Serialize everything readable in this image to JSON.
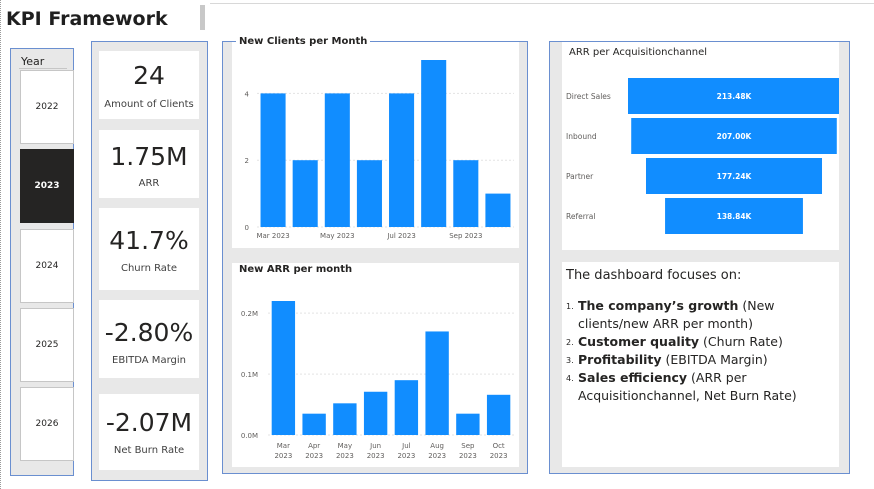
{
  "title": "KPI Framework",
  "year_slicer": {
    "header": "Year",
    "years": [
      "2022",
      "2023",
      "2024",
      "2025",
      "2026"
    ],
    "selected": "2023"
  },
  "kpis": [
    {
      "value": "24",
      "label": "Amount of Clients"
    },
    {
      "value": "1.75M",
      "label": "ARR"
    },
    {
      "value": "41.7%",
      "label": "Churn Rate"
    },
    {
      "value": "-2.80%",
      "label": "EBITDA Margin"
    },
    {
      "value": "-2.07M",
      "label": "Net Burn Rate"
    }
  ],
  "chart_data": [
    {
      "type": "bar",
      "title": "New Clients per Month",
      "categories": [
        "Mar 2023",
        "Apr 2023",
        "May 2023",
        "Jun 2023",
        "Jul 2023",
        "Aug 2023",
        "Sep 2023",
        "Oct 2023"
      ],
      "tick_labels": [
        "Mar 2023",
        "",
        "May 2023",
        "",
        "Jul 2023",
        "",
        "Sep 2023",
        ""
      ],
      "values": [
        4,
        2,
        4,
        2,
        4,
        5,
        2,
        1
      ],
      "yticks": [
        "0",
        "2",
        "4"
      ],
      "ylim": [
        0,
        5
      ],
      "color": "#118dff"
    },
    {
      "type": "bar",
      "title": "New ARR per month",
      "categories": [
        "Mar 2023",
        "Apr 2023",
        "May 2023",
        "Jun 2023",
        "Jul 2023",
        "Aug 2023",
        "Sep 2023",
        "Oct 2023"
      ],
      "tick_top": [
        "Mar",
        "Apr",
        "May",
        "Jun",
        "Jul",
        "Aug",
        "Sep",
        "Oct"
      ],
      "tick_bottom": [
        "2023",
        "2023",
        "2023",
        "2023",
        "2023",
        "2023",
        "2023",
        "2023"
      ],
      "values": [
        0.22,
        0.035,
        0.052,
        0.071,
        0.09,
        0.17,
        0.035,
        0.066
      ],
      "yticks": [
        "0.0M",
        "0.1M",
        "0.2M"
      ],
      "ylim": [
        0,
        0.22
      ],
      "color": "#118dff"
    },
    {
      "type": "funnel",
      "title": "ARR per Acquisitionchannel",
      "categories": [
        "Direct Sales",
        "Inbound",
        "Partner",
        "Referral"
      ],
      "values": [
        213.48,
        207.0,
        177.24,
        138.84
      ],
      "labels": [
        "213.48K",
        "207.00K",
        "177.24K",
        "138.84K"
      ],
      "color": "#118dff"
    }
  ],
  "text_box": {
    "intro": "The dashboard focuses on:",
    "items": [
      {
        "num": "1.",
        "bold": "The company’s growth",
        "rest": " (New clients/new ARR per month)"
      },
      {
        "num": "2.",
        "bold": "Customer quality",
        "rest": " (Churn Rate)"
      },
      {
        "num": "3.",
        "bold": "Profitability",
        "rest": " (EBITDA Margin)"
      },
      {
        "num": "4.",
        "bold": "Sales efficiency",
        "rest": " (ARR per Acquisitionchannel, Net Burn Rate)"
      }
    ]
  }
}
